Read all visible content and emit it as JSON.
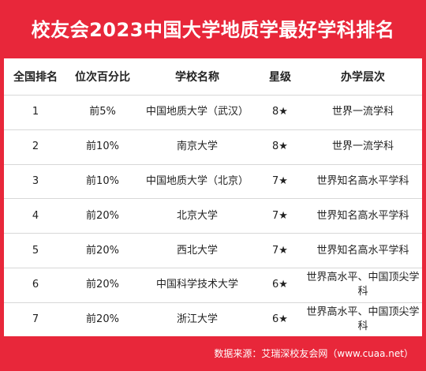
{
  "title": "校友会2023中国大学地质学最好学科排名",
  "table": {
    "headers": [
      "全国排名",
      "位次百分比",
      "学校名称",
      "星级",
      "办学层次"
    ],
    "rows": [
      {
        "rank": "1",
        "percent": "前5%",
        "school": "中国地质大学（武汉）",
        "stars": "8★",
        "level": "世界一流学科"
      },
      {
        "rank": "2",
        "percent": "前10%",
        "school": "南京大学",
        "stars": "8★",
        "level": "世界一流学科"
      },
      {
        "rank": "3",
        "percent": "前10%",
        "school": "中国地质大学（北京）",
        "stars": "7★",
        "level": "世界知名高水平学科"
      },
      {
        "rank": "4",
        "percent": "前20%",
        "school": "北京大学",
        "stars": "7★",
        "level": "世界知名高水平学科"
      },
      {
        "rank": "5",
        "percent": "前20%",
        "school": "西北大学",
        "stars": "7★",
        "level": "世界知名高水平学科"
      },
      {
        "rank": "6",
        "percent": "前20%",
        "school": "中国科学技术大学",
        "stars": "6★",
        "level": "世界高水平、中国顶尖学科"
      },
      {
        "rank": "7",
        "percent": "前20%",
        "school": "浙江大学",
        "stars": "6★",
        "level": "世界高水平、中国顶尖学科"
      }
    ]
  },
  "footer": "数据来源：艾瑞深校友会网（www.cuaa.net）",
  "colors": {
    "background": "#e8273a",
    "card": "#ffffff"
  }
}
